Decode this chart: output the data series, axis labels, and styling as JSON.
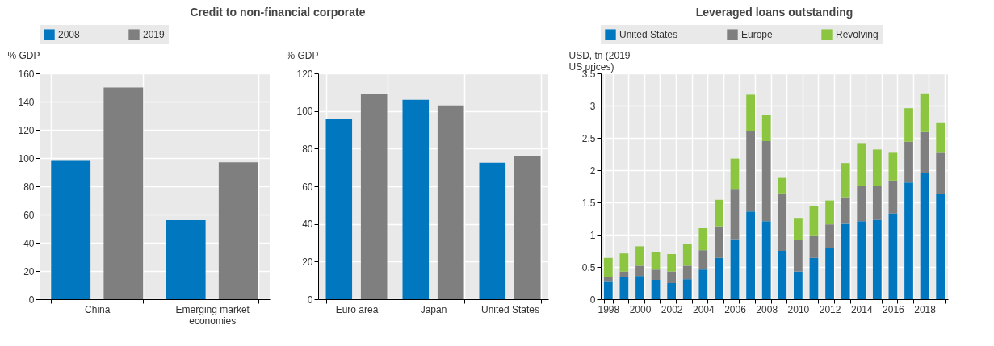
{
  "chart_data": [
    {
      "type": "bar",
      "title": "Credit to non-financial corporate",
      "ylabel": "% GDP",
      "categories": [
        "China",
        "Emerging market economies"
      ],
      "ylim": [
        0,
        160
      ],
      "yticks": [
        0,
        20,
        40,
        60,
        80,
        100,
        120,
        140,
        160
      ],
      "grid": true,
      "legend": "top",
      "series": [
        {
          "name": "2008",
          "color": "#0077bf",
          "values": [
            98,
            56
          ]
        },
        {
          "name": "2019",
          "color": "#7f7f7f",
          "values": [
            150,
            97
          ]
        }
      ]
    },
    {
      "type": "bar",
      "ylabel": "% GDP",
      "categories": [
        "Euro area",
        "Japan",
        "United States"
      ],
      "ylim": [
        0,
        120
      ],
      "yticks": [
        0,
        20,
        40,
        60,
        80,
        100,
        120
      ],
      "grid": true,
      "series": [
        {
          "color": "#0077bf",
          "values": [
            96,
            106,
            72.5
          ]
        },
        {
          "color": "#7f7f7f",
          "values": [
            109,
            103,
            76
          ]
        }
      ]
    },
    {
      "type": "bar",
      "title": "Leveraged loans outstanding",
      "ylabel": "USD, tn (2019 US prices)",
      "stacked": true,
      "grid": true,
      "legend": "top",
      "categories": [
        "1998",
        null,
        "2000",
        null,
        "2002",
        null,
        "2004",
        null,
        "2006",
        null,
        "2008",
        null,
        "2010",
        null,
        "2012",
        null,
        "2014",
        null,
        "2016",
        null,
        "2018",
        null
      ],
      "ylim": [
        0,
        3.5
      ],
      "yticks": [
        0,
        0.5,
        1,
        1.5,
        2,
        2.5,
        3,
        3.5
      ],
      "series": [
        {
          "name": "United States",
          "color": "#0077bf",
          "values": [
            0.27,
            0.34,
            0.36,
            0.3,
            0.25,
            0.31,
            0.46,
            0.64,
            0.93,
            1.36,
            1.21,
            0.75,
            0.43,
            0.64,
            0.8,
            1.17,
            1.21,
            1.23,
            1.33,
            1.81,
            1.96,
            1.63
          ]
        },
        {
          "name": "Europe",
          "color": "#7f7f7f",
          "values": [
            0.07,
            0.09,
            0.16,
            0.16,
            0.18,
            0.21,
            0.3,
            0.49,
            0.78,
            1.25,
            1.24,
            0.89,
            0.49,
            0.35,
            0.36,
            0.41,
            0.54,
            0.53,
            0.51,
            0.63,
            0.63,
            0.64
          ]
        },
        {
          "name": "Revolving",
          "color": "#8cc540",
          "values": [
            0.3,
            0.28,
            0.3,
            0.27,
            0.27,
            0.33,
            0.34,
            0.41,
            0.47,
            0.56,
            0.41,
            0.24,
            0.34,
            0.46,
            0.37,
            0.53,
            0.67,
            0.56,
            0.43,
            0.52,
            0.6,
            0.47
          ]
        }
      ]
    }
  ]
}
